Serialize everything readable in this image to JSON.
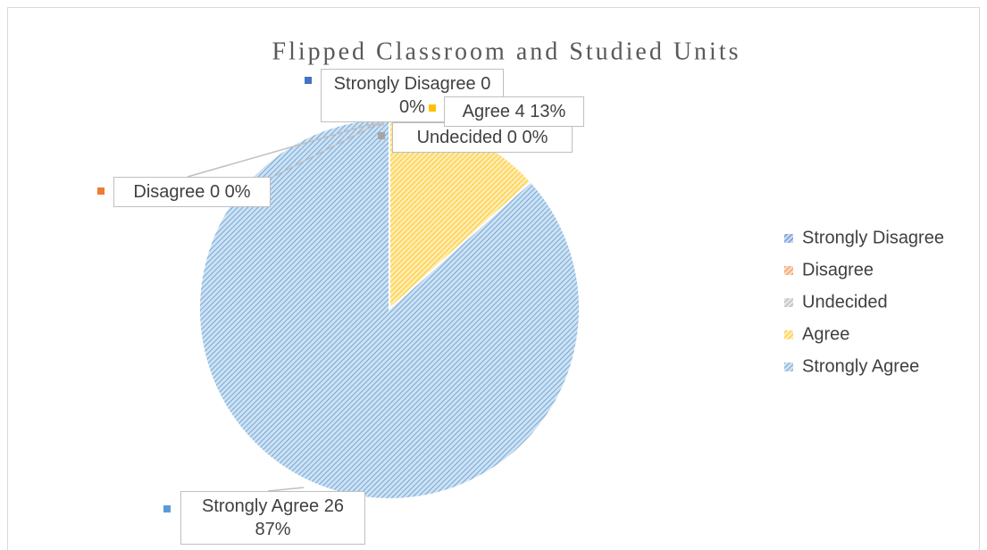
{
  "chart_data": {
    "type": "pie",
    "title": "Flipped Classroom and Studied Units",
    "categories": [
      "Strongly Disagree",
      "Disagree",
      "Undecided",
      "Agree",
      "Strongly Agree"
    ],
    "values": [
      0,
      0,
      0,
      4,
      26
    ],
    "value_labels": [
      "0 0%",
      "0 0%",
      "0 0%",
      "4 13%",
      "26 87%"
    ],
    "colors": [
      "#4472c4",
      "#ed7d31",
      "#a5a5a5",
      "#ffc000",
      "#5b9bd5"
    ],
    "legend": "right"
  }
}
